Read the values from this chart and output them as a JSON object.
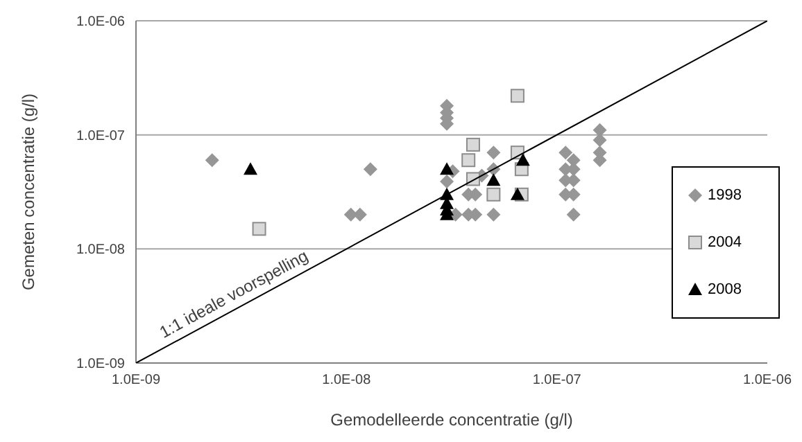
{
  "chart_data": {
    "type": "scatter",
    "xlabel": "Gemodelleerde concentratie (g/l)",
    "ylabel": "Gemeten concentratie (g/l)",
    "log": "xy",
    "grid": "y",
    "legend": "right",
    "annotations": [
      {
        "text": "1:1 ideale voorspelling",
        "x": 3e-09,
        "y": 3e-09
      }
    ],
    "xlim": [
      1e-09,
      1e-06
    ],
    "ylim": [
      1e-09,
      1e-06
    ],
    "xticks": [
      {
        "value": 1e-09,
        "label": "1.0E-09"
      },
      {
        "value": 1e-08,
        "label": "1.0E-08"
      },
      {
        "value": 1e-07,
        "label": "1.0E-07"
      },
      {
        "value": 1e-06,
        "label": "1.0E-06"
      }
    ],
    "yticks": [
      {
        "value": 1e-09,
        "label": "1.0E-09"
      },
      {
        "value": 1e-08,
        "label": "1.0E-08"
      },
      {
        "value": 1e-07,
        "label": "1.0E-07"
      },
      {
        "value": 1e-06,
        "label": "1.0E-06"
      }
    ],
    "series": [
      {
        "name": "1998",
        "marker": "diamond",
        "color": "#969696",
        "x": [
          2.3e-09,
          1.05e-08,
          1.16e-08,
          1.3e-08,
          3e-08,
          3e-08,
          3e-08,
          3e-08,
          3.2e-08,
          3e-08,
          3.3e-08,
          3.8e-08,
          4.1e-08,
          3.8e-08,
          4.1e-08,
          4.4e-08,
          5e-08,
          5e-08,
          5e-08,
          1.1e-07,
          1.1e-07,
          1.1e-07,
          1.1e-07,
          1.2e-07,
          1.2e-07,
          1.2e-07,
          1.2e-07,
          1.2e-07,
          1.6e-07,
          1.6e-07,
          1.6e-07,
          1.6e-07
        ],
        "values": [
          6e-08,
          2e-08,
          2e-08,
          5e-08,
          1.8e-07,
          1.57e-07,
          1.4e-07,
          1.25e-07,
          4.8e-08,
          3.9e-08,
          2e-08,
          3e-08,
          3e-08,
          2e-08,
          2e-08,
          4.4e-08,
          7e-08,
          5e-08,
          2e-08,
          7e-08,
          5e-08,
          4e-08,
          3e-08,
          6e-08,
          5e-08,
          4e-08,
          3e-08,
          2e-08,
          1.1e-07,
          9e-08,
          7e-08,
          6e-08
        ]
      },
      {
        "name": "2004",
        "marker": "square",
        "color": "#d9d9d9",
        "x": [
          3.85e-09,
          6.5e-08,
          4e-08,
          3.8e-08,
          4e-08,
          5e-08,
          6.5e-08,
          6.8e-08,
          6.8e-08
        ],
        "values": [
          1.5e-08,
          2.2e-07,
          8.2e-08,
          6e-08,
          4.1e-08,
          3e-08,
          7e-08,
          5e-08,
          3e-08
        ]
      },
      {
        "name": "2008",
        "marker": "triangle",
        "color": "#000000",
        "x": [
          3.5e-09,
          3e-08,
          3e-08,
          3e-08,
          3e-08,
          3e-08,
          5e-08,
          6.5e-08,
          6.9e-08
        ],
        "values": [
          5e-08,
          5e-08,
          3e-08,
          2.5e-08,
          2.2e-08,
          2e-08,
          4e-08,
          3e-08,
          6e-08
        ]
      },
      {
        "type": "line",
        "marker": "none",
        "color": "#000000",
        "x": [
          1e-09,
          1e-06
        ],
        "values": [
          1e-09,
          1e-06
        ]
      }
    ]
  }
}
